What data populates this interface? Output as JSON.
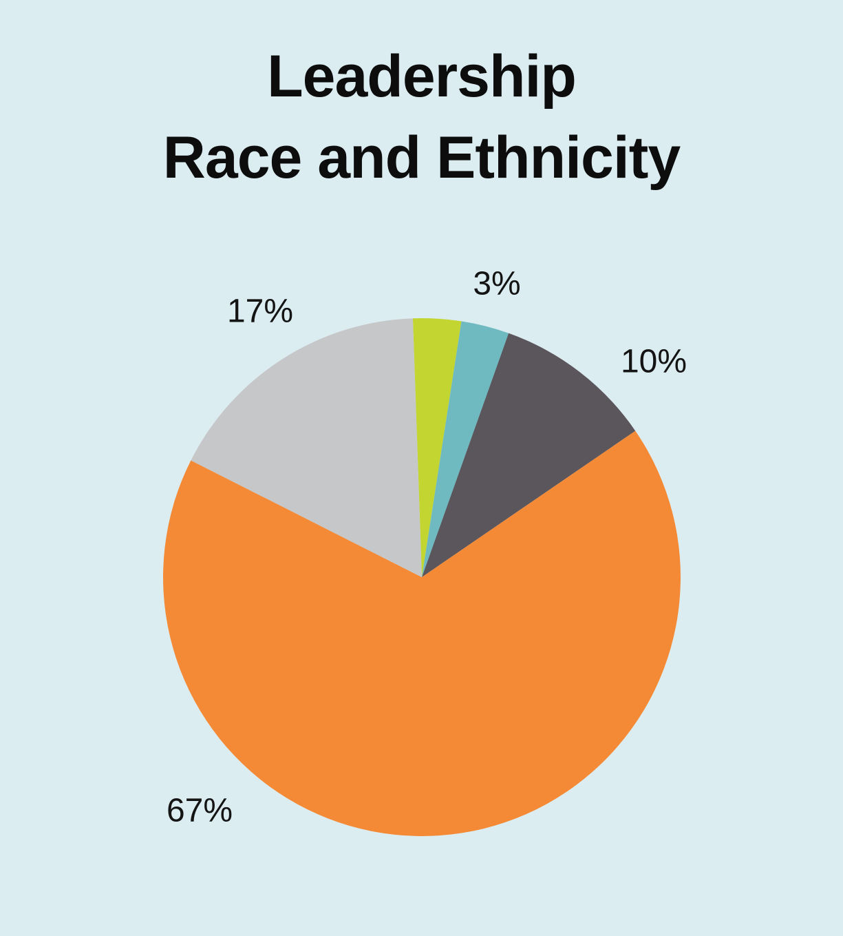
{
  "chart_data": {
    "type": "pie",
    "title_lines": [
      "Leadership",
      "Race and Ethnicity"
    ],
    "slices": [
      {
        "value": 3,
        "label": "",
        "color": "#c2d531"
      },
      {
        "value": 3,
        "label": "3%",
        "color": "#6fbac1"
      },
      {
        "value": 10,
        "label": "10%",
        "color": "#5b555c"
      },
      {
        "value": 67,
        "label": "67%",
        "color": "#f48a36"
      },
      {
        "value": 17,
        "label": "17%",
        "color": "#c6c7c9"
      }
    ],
    "start_angle_deg": -2,
    "direction": "clockwise"
  }
}
